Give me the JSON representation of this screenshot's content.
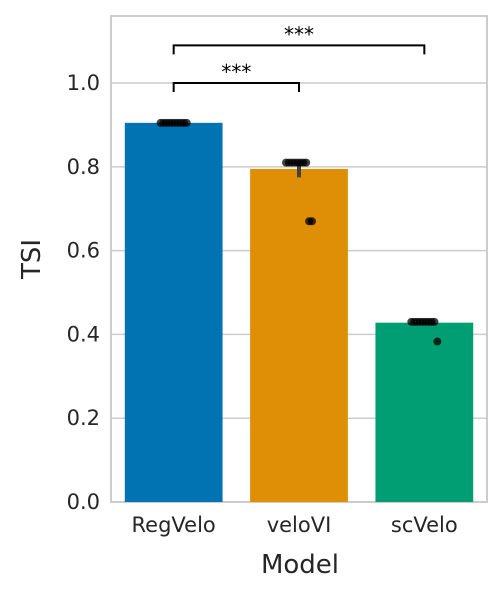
{
  "chart_data": {
    "type": "bar",
    "categories": [
      "RegVelo",
      "veloVI",
      "scVelo"
    ],
    "values": [
      0.905,
      0.795,
      0.428
    ],
    "colors": [
      "#0173b2",
      "#de8f05",
      "#029e73"
    ],
    "points": [
      [
        0.905,
        0.905,
        0.905,
        0.905,
        0.905,
        0.905,
        0.905,
        0.905,
        0.905,
        0.905
      ],
      [
        0.81,
        0.81,
        0.81,
        0.81,
        0.81,
        0.81,
        0.81,
        0.81,
        0.67,
        0.67
      ],
      [
        0.43,
        0.43,
        0.43,
        0.43,
        0.43,
        0.43,
        0.43,
        0.43,
        0.43,
        0.383
      ]
    ],
    "errors": [
      [
        0.905,
        0.905
      ],
      [
        0.775,
        0.81
      ],
      [
        0.425,
        0.43
      ]
    ],
    "xlabel": "Model",
    "ylabel": "TSI",
    "ylim": [
      0,
      1.16
    ],
    "yticks": [
      0.0,
      0.2,
      0.4,
      0.6,
      0.8,
      1.0
    ],
    "ytick_labels": [
      "0.0",
      "0.2",
      "0.4",
      "0.6",
      "0.8",
      "1.0"
    ],
    "grid": "horizontal",
    "annotations": [
      {
        "from": "RegVelo",
        "to": "veloVI",
        "y": 1.0,
        "text": "***"
      },
      {
        "from": "RegVelo",
        "to": "scVelo",
        "y": 1.09,
        "text": "***"
      }
    ]
  }
}
